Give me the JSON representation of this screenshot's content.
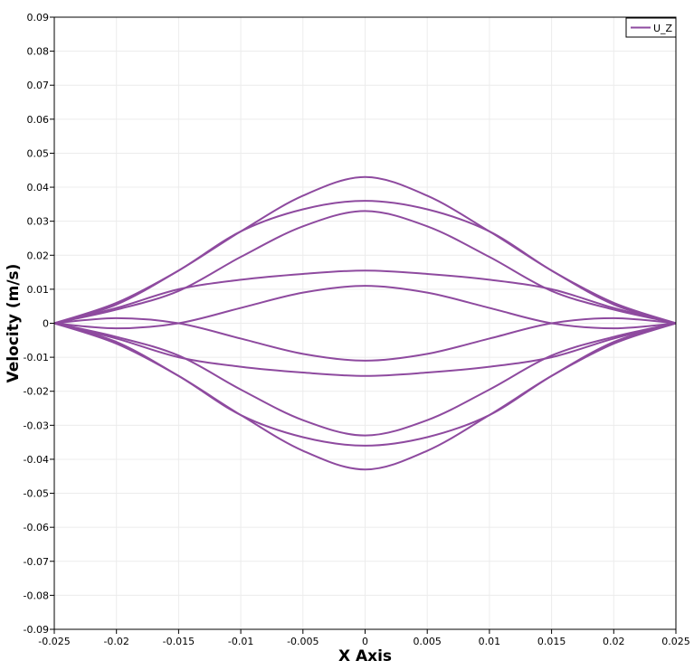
{
  "chart_data": {
    "type": "line",
    "xlabel": "X Axis",
    "ylabel": "Velocity (m/s)",
    "xlim": [
      -0.025,
      0.025
    ],
    "ylim": [
      -0.09,
      0.09
    ],
    "x_ticks": [
      -0.025,
      -0.02,
      -0.015,
      -0.01,
      -0.005,
      0,
      0.005,
      0.01,
      0.015,
      0.02,
      0.025
    ],
    "x_tick_labels": [
      "-0.025",
      "-0.02",
      "-0.015",
      "-0.01",
      "-0.005",
      "0",
      "0.005",
      "0.01",
      "0.015",
      "0.02",
      "0.025"
    ],
    "y_ticks": [
      0.09,
      0.08,
      0.07,
      0.06,
      0.05,
      0.04,
      0.03,
      0.02,
      0.01,
      0,
      -0.01,
      -0.02,
      -0.03,
      -0.04,
      -0.05,
      -0.06,
      -0.07,
      -0.08,
      -0.09
    ],
    "y_tick_labels": [
      "0.09",
      "0.08",
      "0.07",
      "0.06",
      "0.05",
      "0.04",
      "0.03",
      "0.02",
      "0.01",
      "0",
      "-0.01",
      "-0.02",
      "-0.03",
      "-0.04",
      "-0.05",
      "-0.06",
      "-0.07",
      "-0.08",
      "-0.09"
    ],
    "grid": true,
    "legend": {
      "placement": "top-right",
      "entries": [
        "U_Z"
      ]
    },
    "color": "#8e4a9f",
    "series": [
      {
        "name": "U_Z",
        "curves": [
          {
            "x": [
              -0.025,
              -0.02,
              -0.015,
              -0.01,
              -0.005,
              0,
              0.005,
              0.01,
              0.015,
              0.02,
              0.025
            ],
            "y": [
              0,
              0.006,
              0.0155,
              0.027,
              0.0375,
              0.043,
              0.0375,
              0.027,
              0.0155,
              0.006,
              0
            ]
          },
          {
            "x": [
              -0.025,
              -0.02,
              -0.015,
              -0.01,
              -0.005,
              0,
              0.005,
              0.01,
              0.015,
              0.02,
              0.025
            ],
            "y": [
              0,
              0.0055,
              0.0155,
              0.027,
              0.0335,
              0.036,
              0.0335,
              0.027,
              0.0155,
              0.0055,
              0
            ]
          },
          {
            "x": [
              -0.025,
              -0.02,
              -0.015,
              -0.01,
              -0.005,
              0,
              0.005,
              0.01,
              0.015,
              0.02,
              0.025
            ],
            "y": [
              0,
              0.004,
              0.0095,
              0.0195,
              0.0285,
              0.033,
              0.0285,
              0.0195,
              0.0095,
              0.004,
              0
            ]
          },
          {
            "x": [
              -0.025,
              -0.02,
              -0.015,
              -0.01,
              -0.005,
              0,
              0.005,
              0.01,
              0.015,
              0.02,
              0.025
            ],
            "y": [
              0,
              0.0045,
              0.01,
              0.0128,
              0.0145,
              0.0155,
              0.0145,
              0.0128,
              0.01,
              0.0045,
              0
            ]
          },
          {
            "x": [
              -0.025,
              -0.02,
              -0.015,
              -0.01,
              -0.005,
              0,
              0.005,
              0.01,
              0.015,
              0.02,
              0.025
            ],
            "y": [
              0,
              -0.0015,
              0,
              0.0045,
              0.009,
              0.011,
              0.009,
              0.0045,
              0,
              -0.0015,
              0
            ]
          },
          {
            "x": [
              -0.025,
              -0.02,
              -0.015,
              -0.01,
              -0.005,
              0,
              0.005,
              0.01,
              0.015,
              0.02,
              0.025
            ],
            "y": [
              0,
              0.0015,
              0,
              -0.0045,
              -0.009,
              -0.011,
              -0.009,
              -0.0045,
              0,
              0.0015,
              0
            ]
          },
          {
            "x": [
              -0.025,
              -0.02,
              -0.015,
              -0.01,
              -0.005,
              0,
              0.005,
              0.01,
              0.015,
              0.02,
              0.025
            ],
            "y": [
              0,
              -0.0045,
              -0.01,
              -0.0128,
              -0.0145,
              -0.0155,
              -0.0145,
              -0.0128,
              -0.01,
              -0.0045,
              0
            ]
          },
          {
            "x": [
              -0.025,
              -0.02,
              -0.015,
              -0.01,
              -0.005,
              0,
              0.005,
              0.01,
              0.015,
              0.02,
              0.025
            ],
            "y": [
              0,
              -0.004,
              -0.0095,
              -0.0195,
              -0.0285,
              -0.033,
              -0.0285,
              -0.0195,
              -0.0095,
              -0.004,
              0
            ]
          },
          {
            "x": [
              -0.025,
              -0.02,
              -0.015,
              -0.01,
              -0.005,
              0,
              0.005,
              0.01,
              0.015,
              0.02,
              0.025
            ],
            "y": [
              0,
              -0.0055,
              -0.0155,
              -0.027,
              -0.0335,
              -0.036,
              -0.0335,
              -0.027,
              -0.0155,
              -0.0055,
              0
            ]
          },
          {
            "x": [
              -0.025,
              -0.02,
              -0.015,
              -0.01,
              -0.005,
              0,
              0.005,
              0.01,
              0.015,
              0.02,
              0.025
            ],
            "y": [
              0,
              -0.006,
              -0.0155,
              -0.027,
              -0.0375,
              -0.043,
              -0.0375,
              -0.027,
              -0.0155,
              -0.006,
              0
            ]
          }
        ]
      }
    ]
  }
}
